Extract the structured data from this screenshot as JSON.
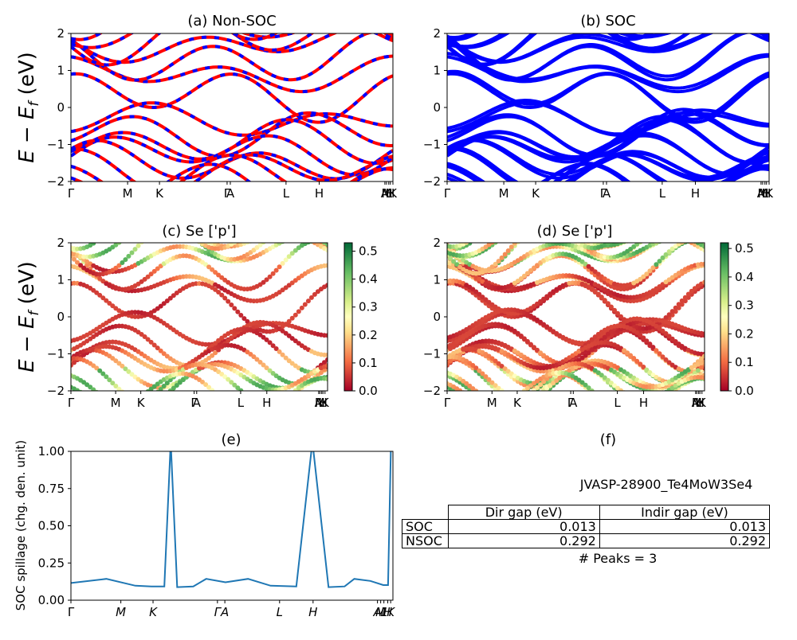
{
  "panels": [
    {
      "id": "a",
      "title": "(a) Non-SOC",
      "ylabel": "E - Ef (eV)",
      "yticks": [
        "2",
        "1",
        "0",
        "−1",
        "−2"
      ],
      "xticks": [
        "Γ",
        "M",
        "K",
        "Γ",
        "A",
        "L",
        "H",
        "A",
        "M",
        "L",
        "H",
        "K"
      ]
    },
    {
      "id": "b",
      "title": "(b) SOC",
      "yticks": [
        "2",
        "1",
        "0",
        "−1",
        "−2"
      ],
      "xticks": [
        "Γ",
        "M",
        "K",
        "Γ",
        "A",
        "L",
        "H",
        "A",
        "M",
        "L",
        "H",
        "K"
      ]
    },
    {
      "id": "c",
      "title": "(c)  Se ['p']",
      "ylabel": "E - Ef (eV)",
      "yticks": [
        "2",
        "1",
        "0",
        "−1",
        "−2"
      ],
      "xticks": [
        "Γ",
        "M",
        "K",
        "Γ",
        "A",
        "L",
        "H",
        "A",
        "M",
        "L",
        "H",
        "K"
      ],
      "colorbar": {
        "ticks": [
          "0.5",
          "0.4",
          "0.3",
          "0.2",
          "0.1",
          "0.0"
        ],
        "max": 0.53,
        "cmap": "RdYlGn"
      }
    },
    {
      "id": "d",
      "title": "(d) Se ['p']",
      "yticks": [
        "2",
        "1",
        "0",
        "−1",
        "−2"
      ],
      "xticks": [
        "Γ",
        "M",
        "K",
        "Γ",
        "A",
        "L",
        "H",
        "A",
        "M",
        "L",
        "H",
        "K"
      ],
      "colorbar": {
        "ticks": [
          "0.5",
          "0.4",
          "0.3",
          "0.2",
          "0.1",
          "0.0"
        ],
        "max": 0.52,
        "cmap": "RdYlGn"
      }
    },
    {
      "id": "e",
      "title": "(e)",
      "ylabel": "SOC spillage (chg. den. unit)",
      "yticks": [
        "1.00",
        "0.75",
        "0.50",
        "0.25",
        "0.00"
      ],
      "xticks": [
        "Γ",
        "M",
        "K",
        "Γ",
        "A",
        "L",
        "H",
        "A",
        "M",
        "L",
        "H",
        "K"
      ]
    },
    {
      "id": "f",
      "title": "(f)"
    }
  ],
  "chart_data": [
    {
      "panel": "a",
      "type": "line",
      "title": "(a) Non-SOC",
      "ylabel": "E - Ef (eV)",
      "ylim": [
        -2,
        2
      ],
      "path": [
        "Γ",
        "M",
        "K",
        "Γ",
        "A",
        "L",
        "H",
        "A",
        "M",
        "L",
        "H",
        "K"
      ],
      "series_colors": [
        "#ff0000",
        "#0000ff"
      ]
    },
    {
      "panel": "b",
      "type": "line",
      "title": "(b) SOC",
      "ylim": [
        -2,
        2
      ],
      "path": [
        "Γ",
        "M",
        "K",
        "Γ",
        "A",
        "L",
        "H",
        "A",
        "M",
        "L",
        "H",
        "K"
      ],
      "series_colors": [
        "#0000ff"
      ]
    },
    {
      "panel": "c",
      "type": "scatter",
      "title": "(c)  Se ['p']",
      "ylabel": "E - Ef (eV)",
      "ylim": [
        -2,
        2
      ],
      "colorbar_range": [
        0.0,
        0.53
      ]
    },
    {
      "panel": "d",
      "type": "scatter",
      "title": "(d) Se ['p']",
      "ylim": [
        -2,
        2
      ],
      "colorbar_range": [
        0.0,
        0.52
      ]
    },
    {
      "panel": "e",
      "type": "line",
      "title": "(e)",
      "ylabel": "SOC spillage (chg. den. unit)",
      "ylim": [
        0,
        1.08
      ],
      "x": [
        0,
        0.11,
        0.2,
        0.25,
        0.29,
        0.31,
        0.33,
        0.38,
        0.42,
        0.48,
        0.55,
        0.62,
        0.7,
        0.75,
        0.8,
        0.85,
        0.88,
        0.93,
        0.97,
        0.985,
        0.994
      ],
      "values": [
        0.125,
        0.155,
        0.105,
        0.1,
        0.1,
        1.15,
        0.095,
        0.1,
        0.155,
        0.13,
        0.155,
        0.105,
        0.1,
        1.15,
        0.095,
        0.1,
        0.155,
        0.14,
        0.11,
        0.11,
        1.15
      ],
      "color": "#1f77b4"
    }
  ],
  "info": {
    "material": "JVASP-28900_Te4MoW3Se4",
    "table": {
      "headers": [
        "Dir gap (eV)",
        "Indir gap (eV)"
      ],
      "rows": [
        {
          "label": "SOC",
          "dir": "0.013",
          "indir": "0.013"
        },
        {
          "label": "NSOC",
          "dir": "0.292",
          "indir": "0.292"
        }
      ]
    },
    "peaks": "# Peaks = 3"
  }
}
